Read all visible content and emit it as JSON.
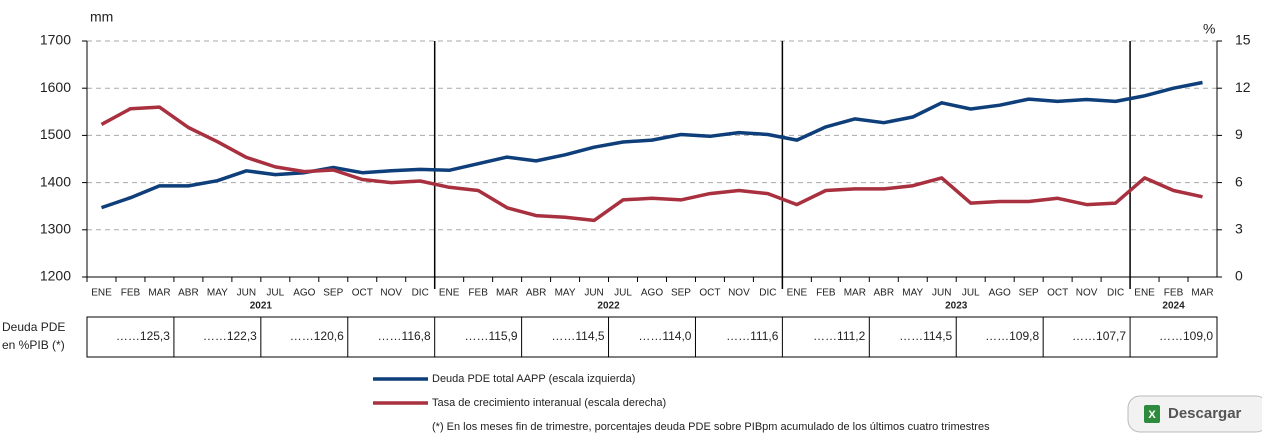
{
  "chart_data": {
    "type": "line",
    "y_unit": "mm",
    "y2_unit": "%",
    "categories": [
      "ENE",
      "FEB",
      "MAR",
      "ABR",
      "MAY",
      "JUN",
      "JUL",
      "AGO",
      "SEP",
      "OCT",
      "NOV",
      "DIC",
      "ENE",
      "FEB",
      "MAR",
      "ABR",
      "MAY",
      "JUN",
      "JUL",
      "AGO",
      "SEP",
      "OCT",
      "NOV",
      "DIC",
      "ENE",
      "FEB",
      "MAR",
      "ABR",
      "MAY",
      "JUN",
      "JUL",
      "AGO",
      "SEP",
      "OCT",
      "NOV",
      "DIC",
      "ENE",
      "FEB",
      "MAR"
    ],
    "years": [
      "2021",
      "2022",
      "2023",
      "2024"
    ],
    "series": [
      {
        "name": "Deuda PDE total AAPP (escala izquierda)",
        "color": "#0e3f7a",
        "axis": "y",
        "values": [
          1347,
          1368,
          1393,
          1393,
          1404,
          1425,
          1417,
          1421,
          1432,
          1421,
          1425,
          1428,
          1426,
          1440,
          1454,
          1446,
          1459,
          1475,
          1486,
          1490,
          1502,
          1498,
          1506,
          1502,
          1490,
          1518,
          1535,
          1527,
          1539,
          1569,
          1556,
          1564,
          1577,
          1572,
          1576,
          1572,
          1584,
          1600,
          1612
        ]
      },
      {
        "name": "Tasa de crecimiento interanual (escala derecha)",
        "color": "#a8303f",
        "axis": "y2",
        "values": [
          9.7,
          10.7,
          10.8,
          9.5,
          8.6,
          7.6,
          7.0,
          6.7,
          6.8,
          6.2,
          6.0,
          6.1,
          5.7,
          5.5,
          4.4,
          3.9,
          3.8,
          3.6,
          4.9,
          5.0,
          4.9,
          5.3,
          5.5,
          5.3,
          4.6,
          5.5,
          5.6,
          5.6,
          5.8,
          6.3,
          4.7,
          4.8,
          4.8,
          5.0,
          4.6,
          4.7,
          6.3,
          5.5,
          5.1
        ]
      }
    ],
    "ylim": [
      1200,
      1700
    ],
    "yticks": [
      1200,
      1300,
      1400,
      1500,
      1600,
      1700
    ],
    "y2lim": [
      0,
      15
    ],
    "y2ticks": [
      0,
      3,
      6,
      9,
      12,
      15
    ],
    "grid": true
  },
  "table": {
    "row_label": [
      "Deuda PDE",
      "en %PIB (*)"
    ],
    "cells": [
      "……125,3",
      "……122,3",
      "……120,6",
      "……116,8",
      "……115,9",
      "……114,5",
      "……114,0",
      "……111,6",
      "……111,2",
      "……114,5",
      "……109,8",
      "……107,7",
      "……109,0"
    ]
  },
  "footnote": "(*) En los meses fin de trimestre, porcentajes deuda PDE sobre PIBpm acumulado de los últimos cuatro trimestres",
  "button": "Descargar"
}
